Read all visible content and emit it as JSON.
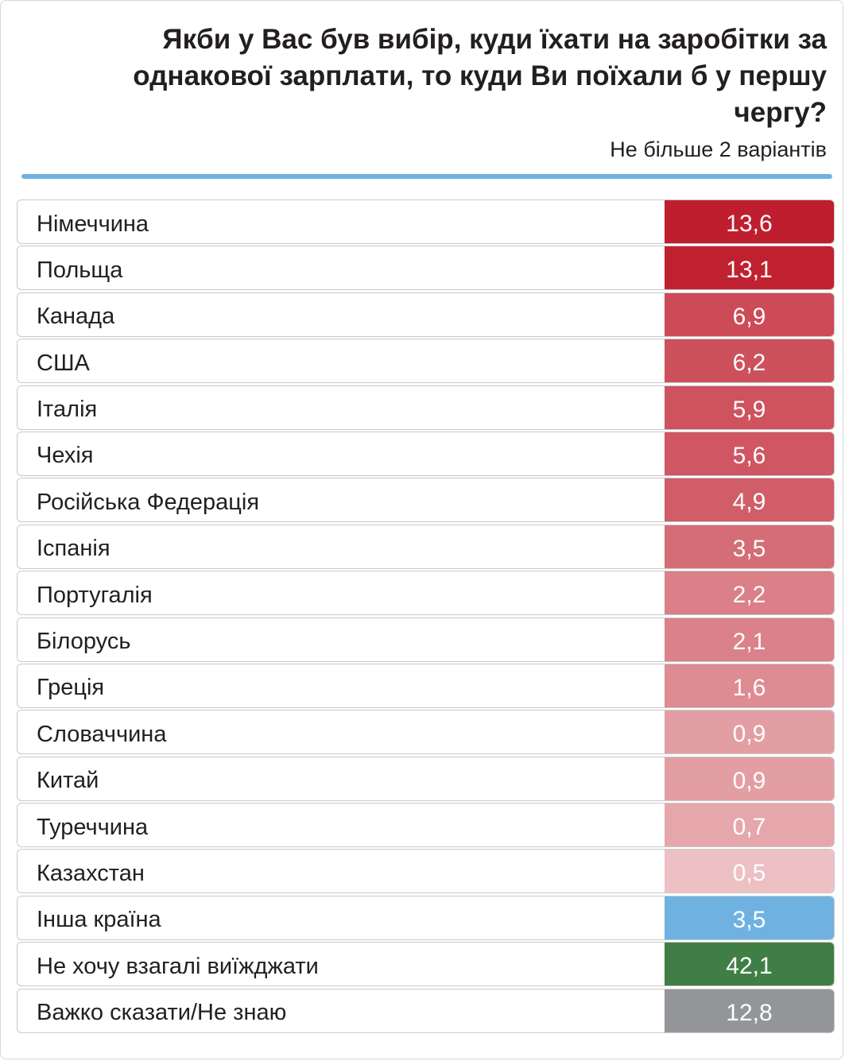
{
  "chart_data": {
    "type": "table",
    "title": "Якби у Вас був вибір, куди їхати на заробітки за однакової зарплати, то куди Ви поїхали б у першу чергу?",
    "subtitle": "Не більше 2 варіантів",
    "categories": [
      "Німеччина",
      "Польща",
      "Канада",
      "США",
      "Італія",
      "Чехія",
      "Російська Федерація",
      "Іспанія",
      "Португалія",
      "Білорусь",
      "Греція",
      "Словаччина",
      "Китай",
      "Туреччина",
      "Казахстан",
      "Інша країна",
      "Не хочу взагалі виїжджати",
      "Важко сказати/Не знаю"
    ],
    "values": [
      13.6,
      13.1,
      6.9,
      6.2,
      5.9,
      5.6,
      4.9,
      3.5,
      2.2,
      2.1,
      1.6,
      0.9,
      0.9,
      0.7,
      0.5,
      3.5,
      42.1,
      12.8
    ],
    "value_labels": [
      "13,6",
      "13,1",
      "6,9",
      "6,2",
      "5,9",
      "5,6",
      "4,9",
      "3,5",
      "2,2",
      "2,1",
      "1,6",
      "0,9",
      "0,9",
      "0,7",
      "0,5",
      "3,5",
      "42,1",
      "12,8"
    ],
    "colors": {
      "country_scale_max": "#bf1e2e",
      "country_scale_min": "#edc0c3",
      "other_country": "#6fb2e2",
      "dont_want": "#3f7f45",
      "hard_to_say": "#939598",
      "accent_rule": "#6fb2e2"
    }
  }
}
